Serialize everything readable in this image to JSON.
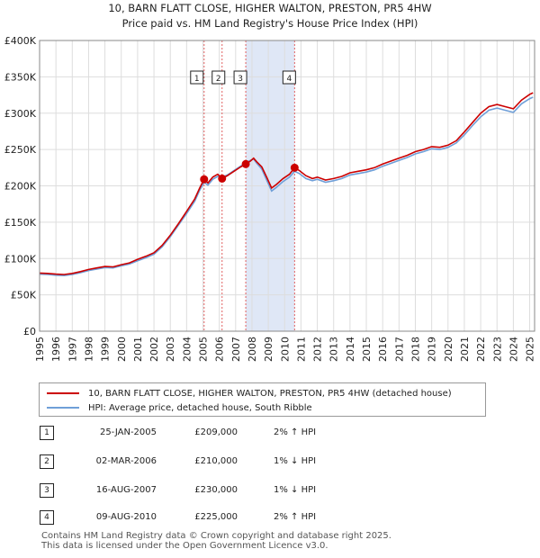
{
  "chart_data": {
    "type": "line",
    "title": "10, BARN FLATT CLOSE, HIGHER WALTON, PRESTON, PR5 4HW",
    "subtitle": "Price paid vs. HM Land Registry's House Price Index (HPI)",
    "xlim": [
      1995,
      2025.3
    ],
    "ylim": [
      0,
      400000
    ],
    "y_ticks": [
      0,
      50000,
      100000,
      150000,
      200000,
      250000,
      300000,
      350000,
      400000
    ],
    "y_tick_labels": [
      "£0",
      "£50K",
      "£100K",
      "£150K",
      "£200K",
      "£250K",
      "£300K",
      "£350K",
      "£400K"
    ],
    "x_ticks": [
      1995,
      1996,
      1997,
      1998,
      1999,
      2000,
      2001,
      2002,
      2003,
      2004,
      2005,
      2006,
      2007,
      2008,
      2009,
      2010,
      2011,
      2012,
      2013,
      2014,
      2015,
      2016,
      2017,
      2018,
      2019,
      2020,
      2021,
      2022,
      2023,
      2024,
      2025
    ],
    "x_tick_labels": [
      "1995",
      "1996",
      "1997",
      "1998",
      "1999",
      "2000",
      "2001",
      "2002",
      "2003",
      "2004",
      "2005",
      "2006",
      "2007",
      "2008",
      "2009",
      "2010",
      "2011",
      "2012",
      "2013",
      "2014",
      "2015",
      "2016",
      "2017",
      "2018",
      "2019",
      "2020",
      "2021",
      "2022",
      "2023",
      "2024",
      "2025"
    ],
    "grid": true,
    "shaded_region": {
      "from": 2007.62,
      "to": 2010.61
    },
    "series": [
      {
        "name": "10, BARN FLATT CLOSE, HIGHER WALTON, PRESTON, PR5 4HW (detached house)",
        "color": "#cc0000",
        "points": [
          [
            1995,
            80000
          ],
          [
            1995.5,
            79500
          ],
          [
            1996,
            78500
          ],
          [
            1996.5,
            78000
          ],
          [
            1997,
            79500
          ],
          [
            1997.5,
            82000
          ],
          [
            1998,
            85000
          ],
          [
            1998.5,
            87000
          ],
          [
            1999,
            89000
          ],
          [
            1999.5,
            88500
          ],
          [
            2000,
            91500
          ],
          [
            2000.5,
            94000
          ],
          [
            2001,
            99000
          ],
          [
            2001.5,
            103000
          ],
          [
            2002,
            108000
          ],
          [
            2002.5,
            118000
          ],
          [
            2003,
            132000
          ],
          [
            2003.5,
            148000
          ],
          [
            2004,
            165000
          ],
          [
            2004.5,
            182000
          ],
          [
            2004.8,
            197000
          ],
          [
            2005.07,
            209000
          ],
          [
            2005.3,
            204000
          ],
          [
            2005.6,
            212000
          ],
          [
            2005.9,
            216000
          ],
          [
            2006.17,
            210000
          ],
          [
            2006.5,
            214000
          ],
          [
            2006.9,
            220000
          ],
          [
            2007.3,
            226000
          ],
          [
            2007.62,
            230000
          ],
          [
            2007.9,
            234000
          ],
          [
            2008.1,
            238000
          ],
          [
            2008.3,
            233000
          ],
          [
            2008.6,
            226000
          ],
          [
            2008.9,
            212000
          ],
          [
            2009.2,
            197000
          ],
          [
            2009.5,
            202000
          ],
          [
            2009.9,
            210000
          ],
          [
            2010.3,
            216000
          ],
          [
            2010.61,
            225000
          ],
          [
            2010.9,
            221000
          ],
          [
            2011.3,
            214000
          ],
          [
            2011.7,
            210000
          ],
          [
            2012,
            212000
          ],
          [
            2012.5,
            208000
          ],
          [
            2013,
            210000
          ],
          [
            2013.5,
            213000
          ],
          [
            2014,
            218000
          ],
          [
            2014.5,
            220000
          ],
          [
            2015,
            222000
          ],
          [
            2015.5,
            225000
          ],
          [
            2016,
            230000
          ],
          [
            2016.5,
            234000
          ],
          [
            2017,
            238000
          ],
          [
            2017.5,
            242000
          ],
          [
            2018,
            247000
          ],
          [
            2018.5,
            250000
          ],
          [
            2019,
            254000
          ],
          [
            2019.5,
            253000
          ],
          [
            2020,
            256000
          ],
          [
            2020.5,
            262000
          ],
          [
            2021,
            274000
          ],
          [
            2021.5,
            287000
          ],
          [
            2022,
            300000
          ],
          [
            2022.5,
            309000
          ],
          [
            2023,
            312000
          ],
          [
            2023.5,
            309000
          ],
          [
            2024,
            306000
          ],
          [
            2024.5,
            318000
          ],
          [
            2025,
            326000
          ],
          [
            2025.2,
            328000
          ]
        ]
      },
      {
        "name": "HPI: Average price, detached house, South Ribble",
        "color": "#6f9fd8",
        "points": [
          [
            1995,
            78500
          ],
          [
            1995.5,
            78000
          ],
          [
            1996,
            77000
          ],
          [
            1996.5,
            76500
          ],
          [
            1997,
            78000
          ],
          [
            1997.5,
            80500
          ],
          [
            1998,
            83500
          ],
          [
            1998.5,
            85500
          ],
          [
            1999,
            87500
          ],
          [
            1999.5,
            87000
          ],
          [
            2000,
            90000
          ],
          [
            2000.5,
            92500
          ],
          [
            2001,
            97000
          ],
          [
            2001.5,
            101000
          ],
          [
            2002,
            106000
          ],
          [
            2002.5,
            116000
          ],
          [
            2003,
            130000
          ],
          [
            2003.5,
            146000
          ],
          [
            2004,
            162000
          ],
          [
            2004.5,
            179000
          ],
          [
            2004.8,
            194000
          ],
          [
            2005.07,
            205000
          ],
          [
            2005.3,
            201000
          ],
          [
            2005.6,
            209000
          ],
          [
            2005.9,
            213000
          ],
          [
            2006.17,
            212000
          ],
          [
            2006.5,
            215000
          ],
          [
            2006.9,
            221000
          ],
          [
            2007.3,
            227000
          ],
          [
            2007.62,
            232000
          ],
          [
            2007.9,
            235000
          ],
          [
            2008.1,
            237000
          ],
          [
            2008.3,
            231000
          ],
          [
            2008.6,
            223000
          ],
          [
            2008.9,
            208000
          ],
          [
            2009.2,
            193000
          ],
          [
            2009.5,
            198000
          ],
          [
            2009.9,
            206000
          ],
          [
            2010.3,
            212000
          ],
          [
            2010.61,
            220000
          ],
          [
            2010.9,
            217000
          ],
          [
            2011.3,
            210000
          ],
          [
            2011.7,
            207000
          ],
          [
            2012,
            209000
          ],
          [
            2012.5,
            205000
          ],
          [
            2013,
            207000
          ],
          [
            2013.5,
            210000
          ],
          [
            2014,
            215000
          ],
          [
            2014.5,
            217000
          ],
          [
            2015,
            219000
          ],
          [
            2015.5,
            222000
          ],
          [
            2016,
            227000
          ],
          [
            2016.5,
            231000
          ],
          [
            2017,
            235000
          ],
          [
            2017.5,
            239000
          ],
          [
            2018,
            244000
          ],
          [
            2018.5,
            247000
          ],
          [
            2019,
            251000
          ],
          [
            2019.5,
            250000
          ],
          [
            2020,
            253000
          ],
          [
            2020.5,
            259000
          ],
          [
            2021,
            270000
          ],
          [
            2021.5,
            283000
          ],
          [
            2022,
            295000
          ],
          [
            2022.5,
            304000
          ],
          [
            2023,
            307000
          ],
          [
            2023.5,
            304000
          ],
          [
            2024,
            301000
          ],
          [
            2024.5,
            313000
          ],
          [
            2025,
            320000
          ],
          [
            2025.2,
            322000
          ]
        ]
      }
    ],
    "sales": [
      {
        "label": "1",
        "x": 2005.07,
        "price": 209000
      },
      {
        "label": "2",
        "x": 2006.17,
        "price": 210000
      },
      {
        "label": "3",
        "x": 2007.62,
        "price": 230000
      },
      {
        "label": "4",
        "x": 2010.61,
        "price": 225000
      }
    ]
  },
  "legend": {
    "property_label": "10, BARN FLATT CLOSE, HIGHER WALTON, PRESTON, PR5 4HW (detached house)",
    "hpi_label": "HPI: Average price, detached house, South Ribble"
  },
  "transactions": [
    {
      "num": "1",
      "date": "25-JAN-2005",
      "price": "£209,000",
      "hpi": "2% ↑ HPI"
    },
    {
      "num": "2",
      "date": "02-MAR-2006",
      "price": "£210,000",
      "hpi": "1% ↓ HPI"
    },
    {
      "num": "3",
      "date": "16-AUG-2007",
      "price": "£230,000",
      "hpi": "1% ↓ HPI"
    },
    {
      "num": "4",
      "date": "09-AUG-2010",
      "price": "£225,000",
      "hpi": "2% ↑ HPI"
    }
  ],
  "footer": {
    "line1": "Contains HM Land Registry data © Crown copyright and database right 2025.",
    "line2": "This data is licensed under the Open Government Licence v3.0."
  }
}
